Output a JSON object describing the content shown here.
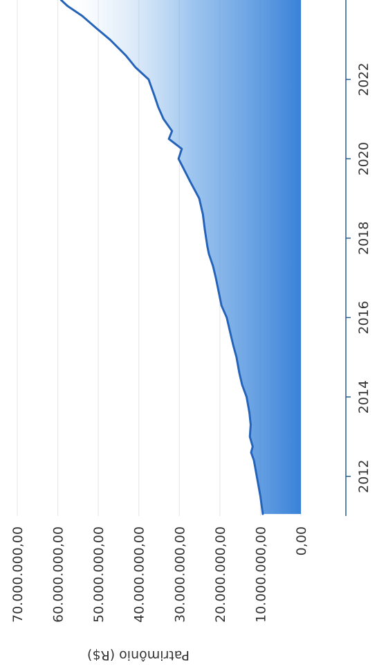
{
  "chart_data": {
    "type": "area",
    "title": "",
    "xlabel": "",
    "ylabel": "Patrimônio (R$)",
    "xlim": [
      2011.0,
      2024.0
    ],
    "ylim": [
      0,
      70000000
    ],
    "x_ticks": [
      {
        "value": 2012,
        "label": "2012"
      },
      {
        "value": 2014,
        "label": "2014"
      },
      {
        "value": 2016,
        "label": "2016"
      },
      {
        "value": 2018,
        "label": "2018"
      },
      {
        "value": 2020,
        "label": "2020"
      },
      {
        "value": 2022,
        "label": "2022"
      }
    ],
    "y_ticks": [
      {
        "value": 0,
        "label": "0,00"
      },
      {
        "value": 10000000,
        "label": "10.000.000,00"
      },
      {
        "value": 20000000,
        "label": "20.000.000,00"
      },
      {
        "value": 30000000,
        "label": "30.000.000,00"
      },
      {
        "value": 40000000,
        "label": "40.000.000,00"
      },
      {
        "value": 50000000,
        "label": "50.000.000,00"
      },
      {
        "value": 60000000,
        "label": "60.000.000,00"
      },
      {
        "value": 70000000,
        "label": "70.000.000,00"
      }
    ],
    "grid": true,
    "legend": "none",
    "colors": {
      "line": "#2563b8",
      "fill": "#4a90d9",
      "grid": "#e8e8e8",
      "axis": "#2b5a8c"
    },
    "series": [
      {
        "x": [
          2011.05,
          2011.5,
          2012.0,
          2012.4,
          2012.6,
          2012.75,
          2013.0,
          2013.3,
          2013.6,
          2014.0,
          2014.3,
          2014.6,
          2015.0,
          2015.3,
          2015.6,
          2016.0,
          2016.3,
          2016.6,
          2017.0,
          2017.3,
          2017.6,
          2017.8,
          2018.2,
          2018.6,
          2019.0,
          2019.4,
          2019.8,
          2020.0,
          2020.25,
          2020.5,
          2020.7,
          2021.0,
          2021.3,
          2021.6,
          2022.0,
          2022.3,
          2022.6,
          2023.0,
          2023.3,
          2023.6,
          2023.85,
          2024.0
        ],
        "values": [
          9400000,
          10000000,
          10900000,
          11600000,
          12300000,
          11900000,
          12600000,
          12400000,
          12700000,
          13400000,
          14500000,
          15200000,
          15900000,
          16700000,
          17400000,
          18300000,
          19600000,
          20200000,
          21000000,
          21700000,
          22700000,
          23100000,
          23700000,
          24200000,
          25100000,
          27200000,
          29200000,
          30200000,
          29400000,
          32600000,
          31800000,
          33900000,
          35200000,
          36200000,
          37600000,
          40800000,
          43200000,
          47100000,
          50600000,
          54000000,
          57600000,
          59200000
        ]
      }
    ]
  }
}
